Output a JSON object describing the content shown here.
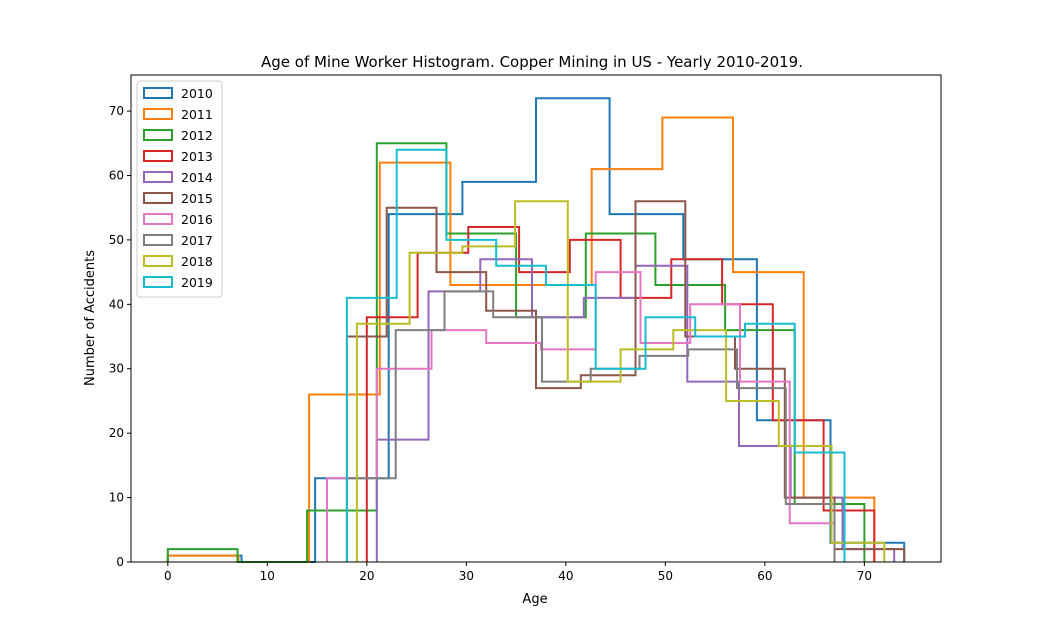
{
  "chart_data": {
    "type": "histogram",
    "title": "Age of Mine Worker Histogram. Copper Mining in US - Yearly 2010-2019.",
    "xlabel": "Age",
    "ylabel": "Number of Accidents",
    "xlim": [
      -3.7,
      77.7
    ],
    "ylim": [
      0,
      75.6
    ],
    "xticks": [
      0,
      10,
      20,
      30,
      40,
      50,
      60,
      70
    ],
    "yticks": [
      0,
      10,
      20,
      30,
      40,
      50,
      60,
      70
    ],
    "grid": false,
    "legend_position": "upper-left",
    "series": [
      {
        "name": "2010",
        "color": "#1f77b4",
        "edges": [
          0,
          7.4,
          14.8,
          22.2,
          29.6,
          37.0,
          44.4,
          51.8,
          59.2,
          66.6,
          74.0
        ],
        "counts": [
          1,
          0,
          13,
          54,
          59,
          72,
          54,
          47,
          22,
          3
        ]
      },
      {
        "name": "2011",
        "color": "#ff7f0e",
        "edges": [
          0,
          7.1,
          14.2,
          21.3,
          28.4,
          35.5,
          42.6,
          49.7,
          56.8,
          63.9,
          71.0
        ],
        "counts": [
          1,
          0,
          26,
          62,
          43,
          43,
          61,
          69,
          45,
          10
        ]
      },
      {
        "name": "2012",
        "color": "#2ca02c",
        "edges": [
          0,
          7.0,
          14.0,
          21.0,
          28.0,
          35.0,
          42.0,
          49.0,
          56.0,
          63.0,
          70.0
        ],
        "counts": [
          2,
          0,
          8,
          65,
          51,
          38,
          51,
          43,
          36,
          9
        ]
      },
      {
        "name": "2013",
        "color": "#d62728",
        "edges": [
          20.0,
          25.1,
          30.2,
          35.3,
          40.4,
          45.5,
          50.6,
          55.7,
          60.8,
          65.9,
          71.0
        ],
        "counts": [
          38,
          48,
          52,
          45,
          50,
          41,
          47,
          40,
          22,
          8
        ]
      },
      {
        "name": "2014",
        "color": "#9467bd",
        "edges": [
          21.0,
          26.2,
          31.4,
          36.6,
          41.8,
          47.0,
          52.2,
          57.4,
          62.6,
          67.8,
          73.0
        ],
        "counts": [
          19,
          42,
          47,
          38,
          41,
          46,
          28,
          18,
          10,
          2
        ]
      },
      {
        "name": "2015",
        "color": "#8c564b",
        "edges": [
          18.0,
          22.0,
          27.0,
          32.0,
          37.0,
          41.5,
          47.0,
          52.0,
          57.0,
          62.0,
          67.0,
          74.0
        ],
        "counts": [
          35,
          55,
          45,
          39,
          27,
          29,
          56,
          35,
          30,
          10,
          2
        ]
      },
      {
        "name": "2016",
        "color": "#e377c2",
        "edges": [
          16.0,
          21.0,
          26.5,
          32.0,
          37.5,
          43.0,
          47.5,
          52.5,
          57.5,
          62.5,
          67.0
        ],
        "counts": [
          13,
          30,
          36,
          34,
          33,
          45,
          34,
          40,
          28,
          6
        ]
      },
      {
        "name": "2017",
        "color": "#7f7f7f",
        "edges": [
          18.0,
          22.9,
          27.8,
          32.7,
          37.6,
          42.5,
          47.4,
          52.3,
          57.2,
          62.1,
          67.0
        ],
        "counts": [
          13,
          36,
          42,
          38,
          28,
          30,
          32,
          33,
          27,
          9
        ]
      },
      {
        "name": "2018",
        "color": "#bcbd22",
        "edges": [
          19.0,
          24.3,
          29.6,
          34.9,
          40.2,
          45.5,
          50.8,
          56.1,
          61.4,
          66.7,
          72.0
        ],
        "counts": [
          37,
          48,
          49,
          56,
          28,
          33,
          36,
          25,
          18,
          3
        ]
      },
      {
        "name": "2019",
        "color": "#17becf",
        "edges": [
          18.0,
          23.0,
          28.0,
          33.0,
          38.0,
          43.0,
          48.0,
          53.0,
          58.0,
          63.0,
          68.0
        ],
        "counts": [
          41,
          64,
          50,
          46,
          43,
          30,
          38,
          35,
          37,
          17
        ]
      }
    ]
  }
}
